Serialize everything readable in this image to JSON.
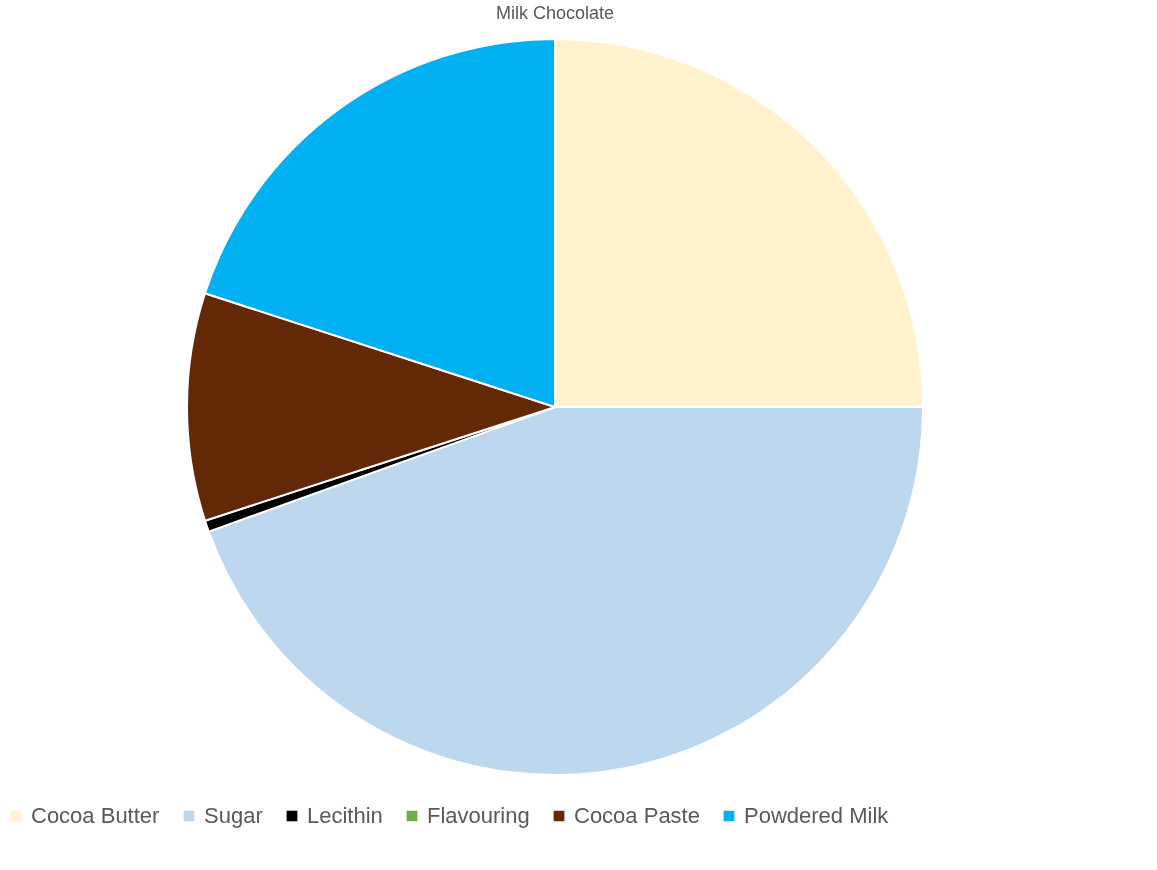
{
  "chart_data": {
    "type": "pie",
    "title": "Milk Chocolate",
    "categories": [
      "Cocoa Butter",
      "Sugar",
      "Lecithin",
      "Flavouring",
      "Cocoa Paste",
      "Powdered Milk"
    ],
    "values": [
      25,
      44.5,
      0.5,
      null,
      10,
      20
    ],
    "colors": [
      "#fff2cc",
      "#bdd7ee",
      "#000000",
      "#70ad47",
      "#632906",
      "#00b0f0"
    ],
    "legend": "bottom"
  }
}
